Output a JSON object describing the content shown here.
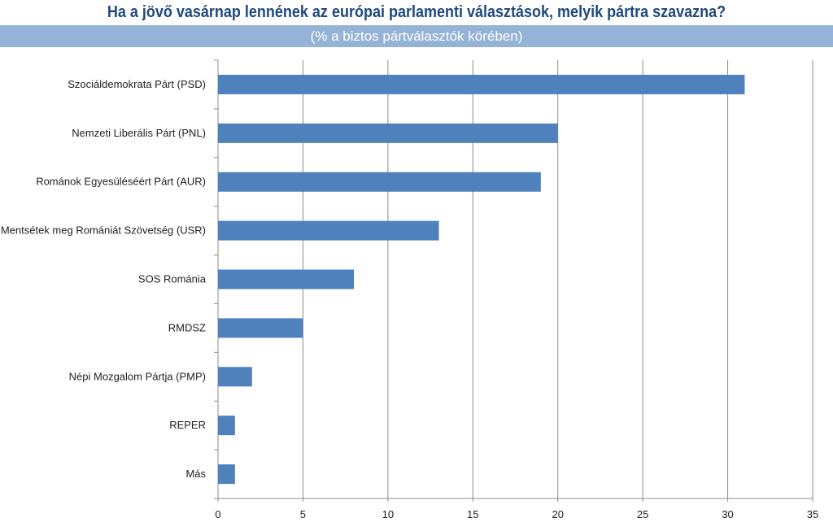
{
  "chart_data": {
    "type": "bar",
    "orientation": "horizontal",
    "title": "Ha a jövő vasárnap lennének az európai parlamenti választások, melyik pártra szavazna?",
    "subtitle": "(% a biztos pártválasztók körében)",
    "categories": [
      "Szociáldemokrata Párt (PSD)",
      "Nemzeti Liberális Párt (PNL)",
      "Románok Egyesüléséért Párt (AUR)",
      "Mentsétek meg Romániát Szövetség (USR)",
      "SOS Románia",
      "RMDSZ",
      "Népi Mozgalom Pártja (PMP)",
      "REPER",
      "Más"
    ],
    "values": [
      31,
      20,
      19,
      13,
      8,
      5,
      2,
      1,
      1
    ],
    "xlim": [
      0,
      35
    ],
    "xticks": [
      "0",
      "5",
      "10",
      "15",
      "20",
      "25",
      "30",
      "35"
    ],
    "grid": true,
    "bar_color": "#4f81bd",
    "xlabel": "",
    "ylabel": ""
  }
}
